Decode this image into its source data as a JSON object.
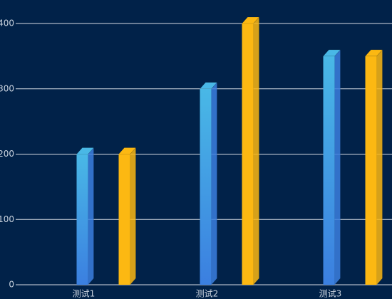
{
  "chart_data": {
    "type": "bar3d",
    "categories": [
      "测试1",
      "测试2",
      "测试3"
    ],
    "series": [
      {
        "color": [
          "#49b8e6",
          "#3b7fe0"
        ],
        "values": [
          200,
          300,
          350
        ]
      },
      {
        "color": [
          "#fcb812",
          "#fcb812"
        ],
        "values": [
          200,
          400,
          350
        ]
      }
    ],
    "ylim": [
      0,
      400
    ],
    "yticks": [
      0,
      100,
      200,
      300,
      400
    ],
    "grid": true
  }
}
